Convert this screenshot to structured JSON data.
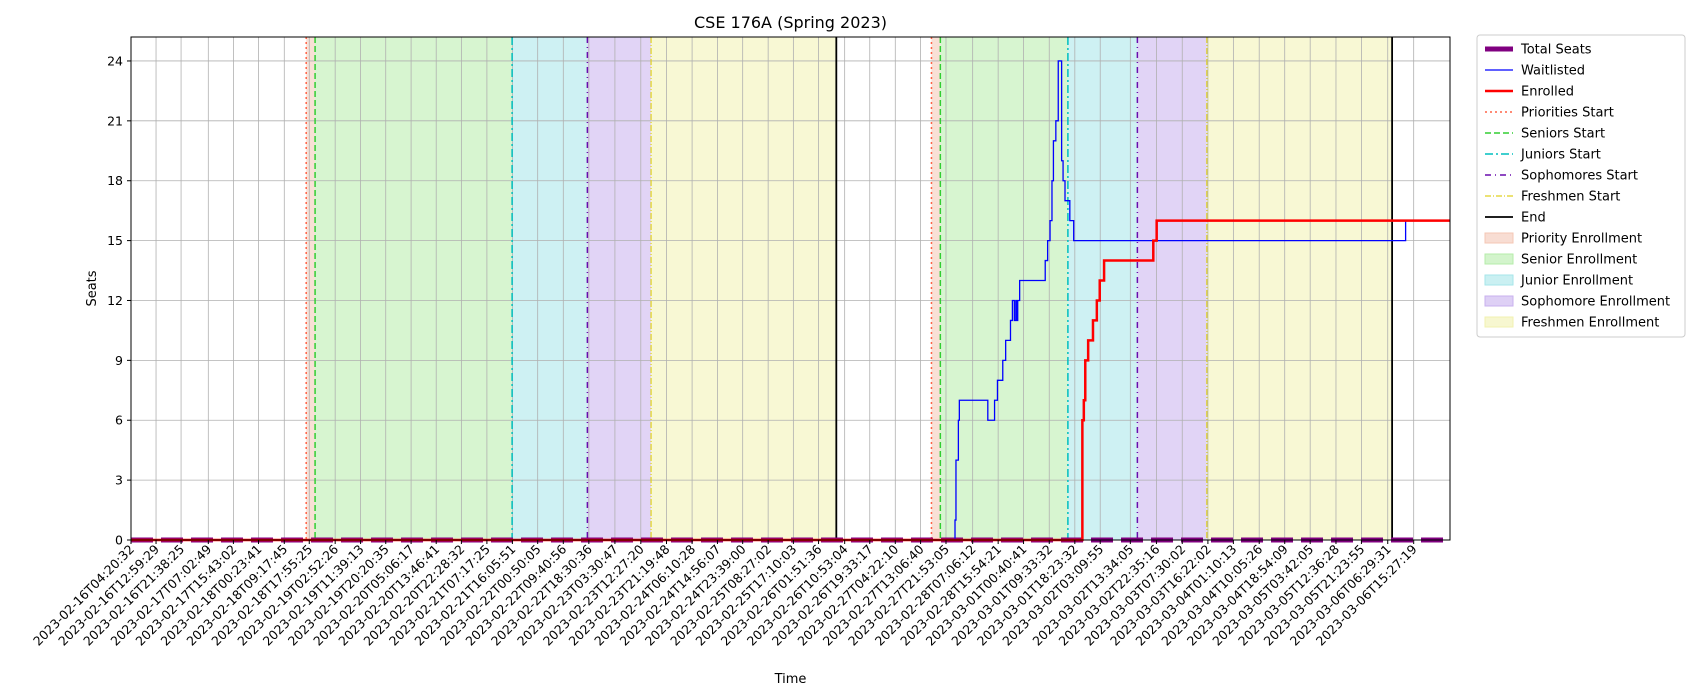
{
  "chart_data": {
    "type": "line",
    "title": "CSE 176A (Spring 2023)",
    "xlabel": "Time",
    "ylabel": "Seats",
    "grid": true,
    "legend_position": "outside-right",
    "ylim": [
      0,
      25.2
    ],
    "yticks": [
      0,
      3,
      6,
      9,
      12,
      15,
      18,
      21,
      24
    ],
    "xlim": [
      "2023-02-16T04:20:32",
      "2023-03-07T04:00:00"
    ],
    "xticks": [
      "2023-02-16T04:20:32",
      "2023-02-16T12:59:29",
      "2023-02-16T21:38:25",
      "2023-02-17T07:02:49",
      "2023-02-17T15:43:02",
      "2023-02-18T00:23:41",
      "2023-02-18T09:17:45",
      "2023-02-18T17:55:25",
      "2023-02-19T02:52:26",
      "2023-02-19T11:39:13",
      "2023-02-19T20:20:35",
      "2023-02-20T05:06:17",
      "2023-02-20T13:46:41",
      "2023-02-20T22:28:32",
      "2023-02-21T07:17:25",
      "2023-02-21T16:05:51",
      "2023-02-22T00:50:05",
      "2023-02-22T09:40:56",
      "2023-02-22T18:30:36",
      "2023-02-23T03:30:47",
      "2023-02-23T12:27:20",
      "2023-02-23T21:19:48",
      "2023-02-24T06:10:28",
      "2023-02-24T14:56:07",
      "2023-02-24T23:39:00",
      "2023-02-25T08:27:02",
      "2023-02-25T17:10:03",
      "2023-02-26T01:51:36",
      "2023-02-26T10:53:04",
      "2023-02-26T19:33:17",
      "2023-02-27T04:22:10",
      "2023-02-27T13:06:40",
      "2023-02-27T21:53:05",
      "2023-02-28T07:06:12",
      "2023-02-28T15:54:21",
      "2023-03-01T00:40:41",
      "2023-03-01T09:33:32",
      "2023-03-01T18:23:32",
      "2023-03-02T03:09:55",
      "2023-03-02T13:34:05",
      "2023-03-02T22:35:16",
      "2023-03-03T07:30:02",
      "2023-03-03T16:22:02",
      "2023-03-04T01:10:13",
      "2023-03-04T10:05:26",
      "2023-03-04T18:54:09",
      "2023-03-05T03:42:05",
      "2023-03-05T12:36:28",
      "2023-03-05T21:23:55",
      "2023-03-06T06:29:31",
      "2023-03-06T15:27:19"
    ],
    "colors": {
      "total": "#800080",
      "waitlist": "#0000ff",
      "enrolled": "#ff0000",
      "priority": "#ff6347",
      "senior": "#32cd32",
      "junior": "#00bfbf",
      "sophomore": "#6a0dad",
      "freshmen": "#e0d020",
      "end": "#000000",
      "priority_fill": "#f4c7b5",
      "senior_fill": "#b6ecaa",
      "junior_fill": "#a6e6ea",
      "sophomore_fill": "#c8b1ee",
      "freshmen_fill": "#f2f2b0"
    },
    "periods": [
      {
        "name": "Priority Enrollment",
        "color_key": "priority_fill",
        "start": "2023-02-18T16:52:00",
        "end": "2023-02-18T19:56:00"
      },
      {
        "name": "Senior Enrollment",
        "color_key": "senior_fill",
        "start": "2023-02-18T19:56:00",
        "end": "2023-02-21T16:00:00"
      },
      {
        "name": "Junior Enrollment",
        "color_key": "junior_fill",
        "start": "2023-02-21T16:00:00",
        "end": "2023-02-22T18:00:00"
      },
      {
        "name": "Sophomore Enrollment",
        "color_key": "sophomore_fill",
        "start": "2023-02-22T18:00:00",
        "end": "2023-02-23T16:00:00"
      },
      {
        "name": "Freshmen Enrollment",
        "color_key": "freshmen_fill",
        "start": "2023-02-23T16:00:00",
        "end": "2023-02-26T08:00:00"
      },
      {
        "name": "Priority Enrollment",
        "color_key": "priority_fill",
        "start": "2023-02-27T16:52:00",
        "end": "2023-02-27T19:56:00"
      },
      {
        "name": "Senior Enrollment",
        "color_key": "senior_fill",
        "start": "2023-02-27T19:56:00",
        "end": "2023-03-01T16:00:00"
      },
      {
        "name": "Junior Enrollment",
        "color_key": "junior_fill",
        "start": "2023-03-01T16:00:00",
        "end": "2023-03-02T16:00:00"
      },
      {
        "name": "Sophomore Enrollment",
        "color_key": "sophomore_fill",
        "start": "2023-03-02T16:00:00",
        "end": "2023-03-03T16:00:00"
      },
      {
        "name": "Freshmen Enrollment",
        "color_key": "freshmen_fill",
        "start": "2023-03-03T16:00:00",
        "end": "2023-03-06T08:00:00"
      }
    ],
    "markers": [
      {
        "name": "Priorities Start",
        "style": "priority",
        "x": "2023-02-18T16:52:00"
      },
      {
        "name": "Seniors Start",
        "style": "senior",
        "x": "2023-02-18T19:56:00"
      },
      {
        "name": "Juniors Start",
        "style": "junior",
        "x": "2023-02-21T16:00:00"
      },
      {
        "name": "Sophomores Start",
        "style": "sophomore",
        "x": "2023-02-22T18:00:00"
      },
      {
        "name": "Freshmen Start",
        "style": "freshmen",
        "x": "2023-02-23T16:00:00"
      },
      {
        "name": "End",
        "style": "end",
        "x": "2023-02-26T08:00:00"
      },
      {
        "name": "Priorities Start",
        "style": "priority",
        "x": "2023-02-27T16:52:00"
      },
      {
        "name": "Seniors Start",
        "style": "senior",
        "x": "2023-02-27T19:56:00"
      },
      {
        "name": "Juniors Start",
        "style": "junior",
        "x": "2023-03-01T16:00:00"
      },
      {
        "name": "Sophomores Start",
        "style": "sophomore",
        "x": "2023-03-02T16:00:00"
      },
      {
        "name": "Freshmen Start",
        "style": "freshmen",
        "x": "2023-03-03T16:00:00"
      },
      {
        "name": "End",
        "style": "end",
        "x": "2023-03-06T08:00:00"
      }
    ],
    "series": [
      {
        "name": "Total Seats",
        "style": "total",
        "x": [
          "2023-02-16T04:20:32",
          "2023-03-07T04:00:00"
        ],
        "values": [
          0,
          0
        ]
      },
      {
        "name": "Waitlisted",
        "style": "waitlist",
        "x": [
          "2023-02-16T04:20:32",
          "2023-02-28T00:10:00",
          "2023-02-28T01:00:00",
          "2023-02-28T01:20:00",
          "2023-02-28T02:10:00",
          "2023-02-28T02:30:00",
          "2023-02-28T03:20:00",
          "2023-02-28T03:40:00",
          "2023-02-28T04:20:00",
          "2023-02-28T05:00:00",
          "2023-02-28T06:00:00",
          "2023-02-28T12:20:00",
          "2023-02-28T14:40:00",
          "2023-02-28T15:40:00",
          "2023-02-28T17:30:00",
          "2023-02-28T18:30:00",
          "2023-02-28T20:10:00",
          "2023-02-28T20:50:00",
          "2023-02-28T21:30:00",
          "2023-02-28T22:00:00",
          "2023-02-28T22:20:00",
          "2023-02-28T22:40:00",
          "2023-02-28T23:00:00",
          "2023-02-28T23:20:00",
          "2023-03-01T00:30:00",
          "2023-03-01T08:10:00",
          "2023-03-01T09:00:00",
          "2023-03-01T09:50:00",
          "2023-03-01T10:30:00",
          "2023-03-01T11:00:00",
          "2023-03-01T11:50:00",
          "2023-03-01T12:40:00",
          "2023-03-01T13:20:00",
          "2023-03-01T13:50:00",
          "2023-03-01T14:20:00",
          "2023-03-01T14:40:00",
          "2023-03-01T15:00:00",
          "2023-03-01T15:30:00",
          "2023-03-01T16:40:00",
          "2023-03-01T17:20:00",
          "2023-03-01T18:00:00",
          "2023-03-01T18:40:00",
          "2023-03-01T22:00:00",
          "2023-03-01T23:00:00",
          "2023-03-02T20:30:00",
          "2023-03-03T01:00:00",
          "2023-03-06T12:00:00",
          "2023-03-06T12:40:00",
          "2023-03-07T04:00:00"
        ],
        "values": [
          0,
          0,
          1,
          4,
          6,
          7,
          7,
          7,
          7,
          7,
          7,
          6,
          7,
          8,
          9,
          10,
          11,
          12,
          11,
          12,
          11,
          12,
          12,
          13,
          13,
          14,
          15,
          16,
          18,
          20,
          21,
          24,
          24,
          19,
          18,
          18,
          17,
          17,
          16,
          16,
          15,
          15,
          15,
          15,
          15,
          15,
          15,
          16,
          16
        ]
      },
      {
        "name": "Enrolled",
        "style": "enrolled",
        "x": [
          "2023-02-16T04:20:32",
          "2023-03-01T20:30:00",
          "2023-03-01T21:00:00",
          "2023-03-01T21:30:00",
          "2023-03-01T22:00:00",
          "2023-03-01T23:00:00",
          "2023-03-02T00:40:00",
          "2023-03-02T02:00:00",
          "2023-03-02T03:00:00",
          "2023-03-02T04:30:00",
          "2023-03-02T05:40:00",
          "2023-03-02T06:50:00",
          "2023-03-02T08:00:00",
          "2023-03-02T09:00:00",
          "2023-03-02T21:00:00",
          "2023-03-02T21:30:00",
          "2023-03-02T22:00:00",
          "2023-03-02T22:40:00",
          "2023-03-07T04:00:00"
        ],
        "values": [
          0,
          0,
          6,
          7,
          9,
          10,
          11,
          12,
          13,
          14,
          14,
          14,
          14,
          14,
          14,
          15,
          15,
          16,
          16
        ]
      }
    ],
    "legend": [
      {
        "label": "Total Seats",
        "kind": "line",
        "style": "total"
      },
      {
        "label": "Waitlisted",
        "kind": "line",
        "style": "waitlist"
      },
      {
        "label": "Enrolled",
        "kind": "line",
        "style": "enrolled"
      },
      {
        "label": "Priorities Start",
        "kind": "line",
        "style": "priority"
      },
      {
        "label": "Seniors Start",
        "kind": "line",
        "style": "senior"
      },
      {
        "label": "Juniors Start",
        "kind": "line",
        "style": "junior"
      },
      {
        "label": "Sophomores Start",
        "kind": "line",
        "style": "sophomore"
      },
      {
        "label": "Freshmen Start",
        "kind": "line",
        "style": "freshmen"
      },
      {
        "label": "End",
        "kind": "line",
        "style": "end"
      },
      {
        "label": "Priority Enrollment",
        "kind": "patch",
        "color_key": "priority_fill"
      },
      {
        "label": "Senior Enrollment",
        "kind": "patch",
        "color_key": "senior_fill"
      },
      {
        "label": "Junior Enrollment",
        "kind": "patch",
        "color_key": "junior_fill"
      },
      {
        "label": "Sophomore Enrollment",
        "kind": "patch",
        "color_key": "sophomore_fill"
      },
      {
        "label": "Freshmen Enrollment",
        "kind": "patch",
        "color_key": "freshmen_fill"
      }
    ]
  }
}
